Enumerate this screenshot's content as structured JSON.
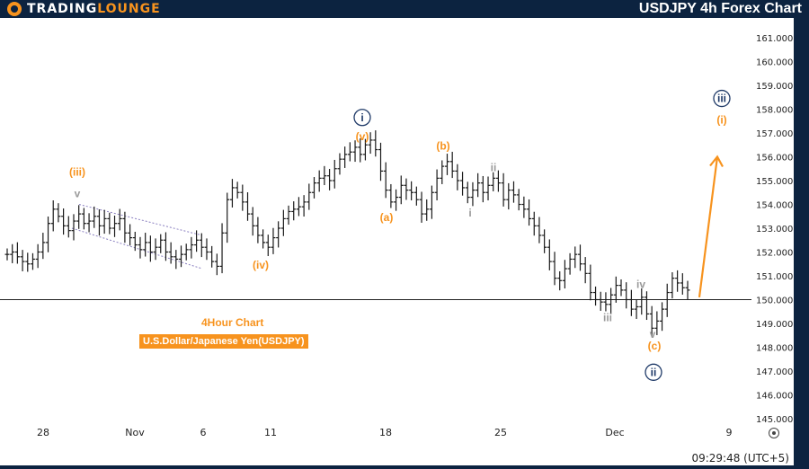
{
  "header": {
    "logo_text_1": "TRADING",
    "logo_text_2": "LOUNGE",
    "title": "USDJPY 4h Forex Chart"
  },
  "annotations": {
    "subtitle": "4Hour Chart",
    "pair": "U.S.Dollar/Japanese Yen(USDJPY)"
  },
  "footer": {
    "timestamp": "09:29:48 (UTC+5)"
  },
  "colors": {
    "orange": "#f7931e",
    "navy": "#1f3a68",
    "gray": "#9a9a9a",
    "bars": "#1a1a1a",
    "channel": "#8a7fc0",
    "header_bg": "#0c2340"
  },
  "chart_data": {
    "type": "ohlc",
    "y_ticks": [
      "161.000",
      "160.000",
      "159.000",
      "158.000",
      "157.000",
      "156.000",
      "155.000",
      "154.000",
      "153.000",
      "152.000",
      "151.000",
      "150.000",
      "149.000",
      "148.000",
      "147.000",
      "146.000",
      "145.000"
    ],
    "x_ticks": [
      "28",
      "Nov",
      "6",
      "11",
      "18",
      "25",
      "Dec",
      "9"
    ],
    "ylim": [
      145.0,
      161.5
    ],
    "horizontal_line": 150.0,
    "wave_labels": [
      {
        "text": "(iii)",
        "price": 155.2,
        "color": "orange"
      },
      {
        "text": "v",
        "price": 154.3,
        "color": "gray"
      },
      {
        "text": "i",
        "price": 157.5,
        "color": "navy",
        "circled": true
      },
      {
        "text": "(v)",
        "price": 156.7,
        "color": "orange"
      },
      {
        "text": "(iv)",
        "price": 151.3,
        "color": "orange"
      },
      {
        "text": "(a)",
        "price": 153.3,
        "color": "orange"
      },
      {
        "text": "(b)",
        "price": 156.3,
        "color": "orange"
      },
      {
        "text": "ii",
        "price": 155.4,
        "color": "gray"
      },
      {
        "text": "i",
        "price": 153.5,
        "color": "gray"
      },
      {
        "text": "iv",
        "price": 150.5,
        "color": "gray"
      },
      {
        "text": "iii",
        "price": 149.1,
        "color": "gray"
      },
      {
        "text": "v",
        "price": 148.4,
        "color": "gray"
      },
      {
        "text": "(c)",
        "price": 147.9,
        "color": "orange"
      },
      {
        "text": "ii",
        "price": 146.8,
        "color": "navy",
        "circled": true
      },
      {
        "text": "iii",
        "price": 158.3,
        "color": "navy",
        "circled": true
      },
      {
        "text": "(i)",
        "price": 157.4,
        "color": "orange"
      }
    ],
    "price_path": [
      151.9,
      152.0,
      151.8,
      151.6,
      151.5,
      151.7,
      152.0,
      152.4,
      153.2,
      153.8,
      153.5,
      153.1,
      152.9,
      153.3,
      153.6,
      153.2,
      153.3,
      153.5,
      153.1,
      153.4,
      153.0,
      153.2,
      153.4,
      152.8,
      152.6,
      152.3,
      152.1,
      152.4,
      152.0,
      152.2,
      152.5,
      152.0,
      151.8,
      151.7,
      151.9,
      152.1,
      152.3,
      152.5,
      152.2,
      152.0,
      151.6,
      151.4,
      152.8,
      154.2,
      154.7,
      154.5,
      154.1,
      153.6,
      153.1,
      152.7,
      152.4,
      152.2,
      152.6,
      153.0,
      153.4,
      153.7,
      153.8,
      153.9,
      154.1,
      154.5,
      154.9,
      155.1,
      155.2,
      155.0,
      155.5,
      155.9,
      156.1,
      156.2,
      156.4,
      156.1,
      156.5,
      156.7,
      156.3,
      155.4,
      154.6,
      154.1,
      154.3,
      154.8,
      154.6,
      154.5,
      154.2,
      153.6,
      153.8,
      154.5,
      155.1,
      155.6,
      155.8,
      155.4,
      155.0,
      154.7,
      154.3,
      154.6,
      154.9,
      154.5,
      154.8,
      155.1,
      154.9,
      154.2,
      154.6,
      154.4,
      154.0,
      153.8,
      153.4,
      153.1,
      152.7,
      152.2,
      151.6,
      150.9,
      150.8,
      151.3,
      151.7,
      151.9,
      151.5,
      151.1,
      150.3,
      150.0,
      149.9,
      149.8,
      150.2,
      150.6,
      150.4,
      150.0,
      149.6,
      149.7,
      150.1,
      149.4,
      148.8,
      149.1,
      149.6,
      150.3,
      150.9,
      150.7,
      150.5,
      150.4
    ],
    "projection": {
      "from_price": 150.1,
      "to_price": 156.0,
      "color": "orange"
    }
  }
}
